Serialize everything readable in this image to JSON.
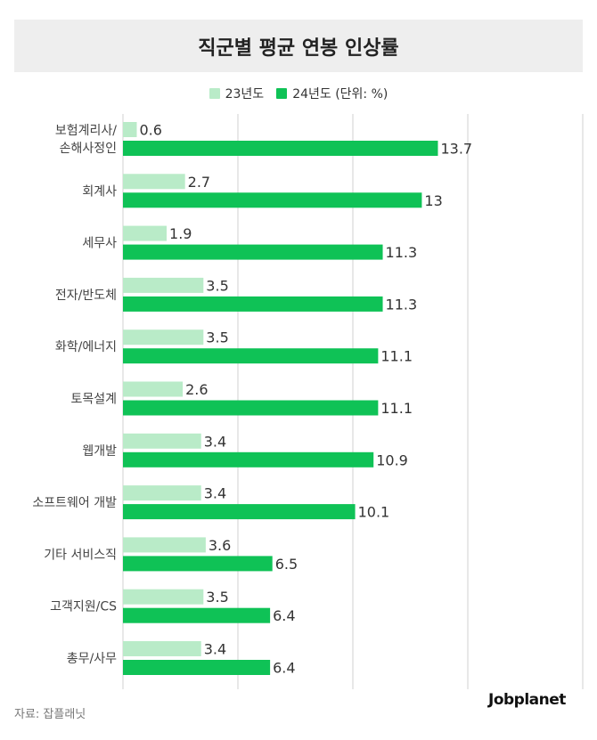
{
  "title": "직군별 평균 연봉 인상률",
  "legend": {
    "item1": "23년도",
    "item2": "24년도 (단위: %)"
  },
  "source": "자료: 잡플래닛",
  "logo": "Jobplanet",
  "colors": {
    "series_2023": "#b9ebc8",
    "series_2024": "#0fc256",
    "grid": "#d0d0d0",
    "title_bg": "#eeeeee"
  },
  "chart_data": {
    "type": "bar",
    "orientation": "horizontal",
    "categories": [
      [
        "보험계리사/",
        "손해사정인"
      ],
      [
        "회계사"
      ],
      [
        "세무사"
      ],
      [
        "전자/반도체"
      ],
      [
        "화학/에너지"
      ],
      [
        "토목설계"
      ],
      [
        "웹개발"
      ],
      [
        "소프트웨어 개발"
      ],
      [
        "기타 서비스직"
      ],
      [
        "고객지원/CS"
      ],
      [
        "총무/사무"
      ]
    ],
    "series": [
      {
        "name": "23년도",
        "values": [
          0.6,
          2.7,
          1.9,
          3.5,
          3.5,
          2.6,
          3.4,
          3.4,
          3.6,
          3.5,
          3.4
        ],
        "labels": [
          "0.6",
          "2.7",
          "1.9",
          "3.5",
          "3.5",
          "2.6",
          "3.4",
          "3.4",
          "3.6",
          "3.5",
          "3.4"
        ]
      },
      {
        "name": "24년도",
        "values": [
          13.7,
          13,
          11.3,
          11.3,
          11.1,
          11.1,
          10.9,
          10.1,
          6.5,
          6.4,
          6.4
        ],
        "labels": [
          "13.7",
          "13",
          "11.3",
          "11.3",
          "11.1",
          "11.1",
          "10.9",
          "10.1",
          "6.5",
          "6.4",
          "6.4"
        ]
      }
    ],
    "xlim": [
      0,
      20
    ],
    "grid": true,
    "legend_position": "top-center"
  }
}
